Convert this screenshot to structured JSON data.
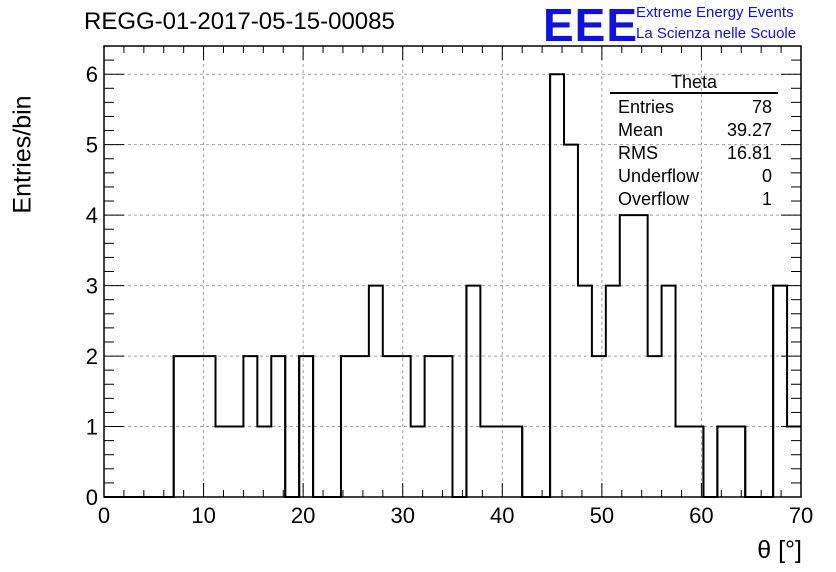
{
  "header": {
    "title": "REGG-01-2017-05-15-00085",
    "logo_text": "EEE",
    "logo_line1": "Extreme Energy Events",
    "logo_line2": "La Scienza nelle Scuole"
  },
  "stats_box": {
    "title": "Theta",
    "rows": [
      {
        "label": "Entries",
        "value": "78"
      },
      {
        "label": "Mean",
        "value": "39.27"
      },
      {
        "label": "RMS",
        "value": "16.81"
      },
      {
        "label": "Underflow",
        "value": "0"
      },
      {
        "label": "Overflow",
        "value": "1"
      }
    ]
  },
  "chart_data": {
    "type": "bar",
    "style": "step-histogram",
    "title": "REGG-01-2017-05-15-00085",
    "xlabel": "θ [°]",
    "ylabel": "Entries/bin",
    "xlim": [
      0,
      70
    ],
    "ylim": [
      0,
      6.4
    ],
    "grid": true,
    "bin_width": 1.4,
    "x_ticks": [
      0,
      10,
      20,
      30,
      40,
      50,
      60,
      70
    ],
    "y_ticks": [
      0,
      1,
      2,
      3,
      4,
      5,
      6
    ],
    "bin_edges_start": 0,
    "values": [
      0,
      0,
      0,
      0,
      0,
      2,
      2,
      2,
      1,
      1,
      2,
      1,
      2,
      0,
      2,
      0,
      0,
      2,
      2,
      3,
      2,
      2,
      1,
      2,
      2,
      0,
      3,
      1,
      1,
      1,
      0,
      0,
      6,
      5,
      3,
      2,
      3,
      4,
      4,
      2,
      3,
      1,
      1,
      0,
      1,
      1,
      0,
      0,
      3,
      1
    ]
  },
  "colors": {
    "axis": "#000000",
    "grid": "#a0a0a0",
    "histogram": "#000000",
    "logo": "#1010e0"
  }
}
